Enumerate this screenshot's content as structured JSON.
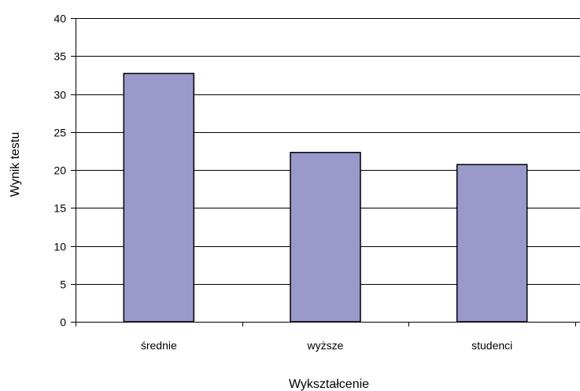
{
  "chart_data": {
    "type": "bar",
    "categories": [
      "średnie",
      "wyższe",
      "studenci"
    ],
    "values": [
      32.7,
      22.3,
      20.7
    ],
    "xlabel": "Wykształcenie",
    "ylabel": "Wynik testu",
    "ylim": [
      0,
      40
    ],
    "yticks": [
      "0",
      "5",
      "10",
      "15",
      "20",
      "25",
      "30",
      "35",
      "40"
    ],
    "grid": true,
    "legend": "none",
    "colors": {
      "bar": "#9999cc",
      "bar_stroke": "#000000",
      "grid": "#000000"
    }
  }
}
